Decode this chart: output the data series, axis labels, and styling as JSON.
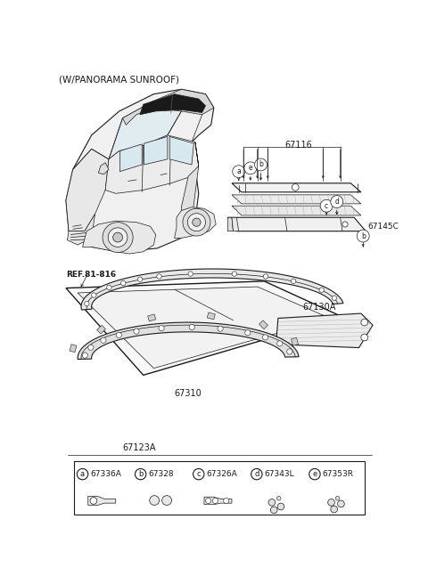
{
  "title": "(W/PANORAMA SUNROOF)",
  "bg": "#ffffff",
  "lc": "#1a1a1a",
  "fig_w": 4.8,
  "fig_h": 6.56,
  "dpi": 100,
  "legend": [
    {
      "letter": "a",
      "code": "67336A"
    },
    {
      "letter": "b",
      "code": "67328"
    },
    {
      "letter": "c",
      "code": "67326A"
    },
    {
      "letter": "d",
      "code": "67343L"
    },
    {
      "letter": "e",
      "code": "67353R"
    }
  ]
}
